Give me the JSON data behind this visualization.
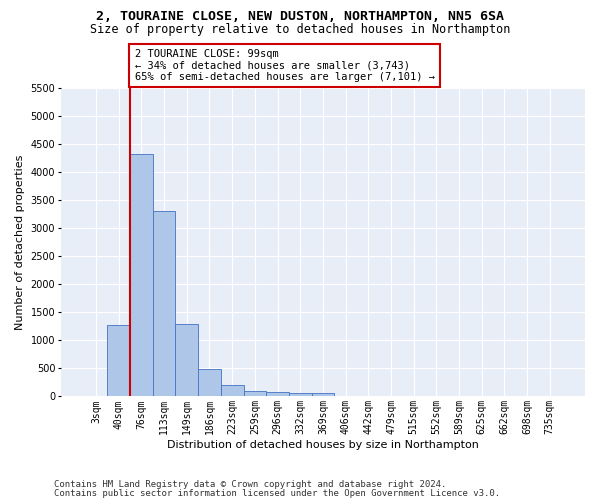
{
  "title1": "2, TOURAINE CLOSE, NEW DUSTON, NORTHAMPTON, NN5 6SA",
  "title2": "Size of property relative to detached houses in Northampton",
  "xlabel": "Distribution of detached houses by size in Northampton",
  "ylabel": "Number of detached properties",
  "categories": [
    "3sqm",
    "40sqm",
    "76sqm",
    "113sqm",
    "149sqm",
    "186sqm",
    "223sqm",
    "259sqm",
    "296sqm",
    "332sqm",
    "369sqm",
    "406sqm",
    "442sqm",
    "479sqm",
    "515sqm",
    "552sqm",
    "589sqm",
    "625sqm",
    "662sqm",
    "698sqm",
    "735sqm"
  ],
  "values": [
    0,
    1270,
    4320,
    3300,
    1290,
    490,
    210,
    90,
    75,
    55,
    60,
    0,
    0,
    0,
    0,
    0,
    0,
    0,
    0,
    0,
    0
  ],
  "bar_color": "#aec6e8",
  "bar_edge_color": "#4472c4",
  "highlight_bar_index": 2,
  "highlight_color": "#cc0000",
  "annotation_text": "2 TOURAINE CLOSE: 99sqm\n← 34% of detached houses are smaller (3,743)\n65% of semi-detached houses are larger (7,101) →",
  "annotation_box_color": "#ffffff",
  "annotation_box_edge": "#cc0000",
  "ylim": [
    0,
    5500
  ],
  "yticks": [
    0,
    500,
    1000,
    1500,
    2000,
    2500,
    3000,
    3500,
    4000,
    4500,
    5000,
    5500
  ],
  "footer1": "Contains HM Land Registry data © Crown copyright and database right 2024.",
  "footer2": "Contains public sector information licensed under the Open Government Licence v3.0.",
  "plot_bg_color": "#e8eef8",
  "title_fontsize": 9.5,
  "subtitle_fontsize": 8.5,
  "axis_label_fontsize": 8,
  "tick_fontsize": 7,
  "annotation_fontsize": 7.5,
  "footer_fontsize": 6.5
}
